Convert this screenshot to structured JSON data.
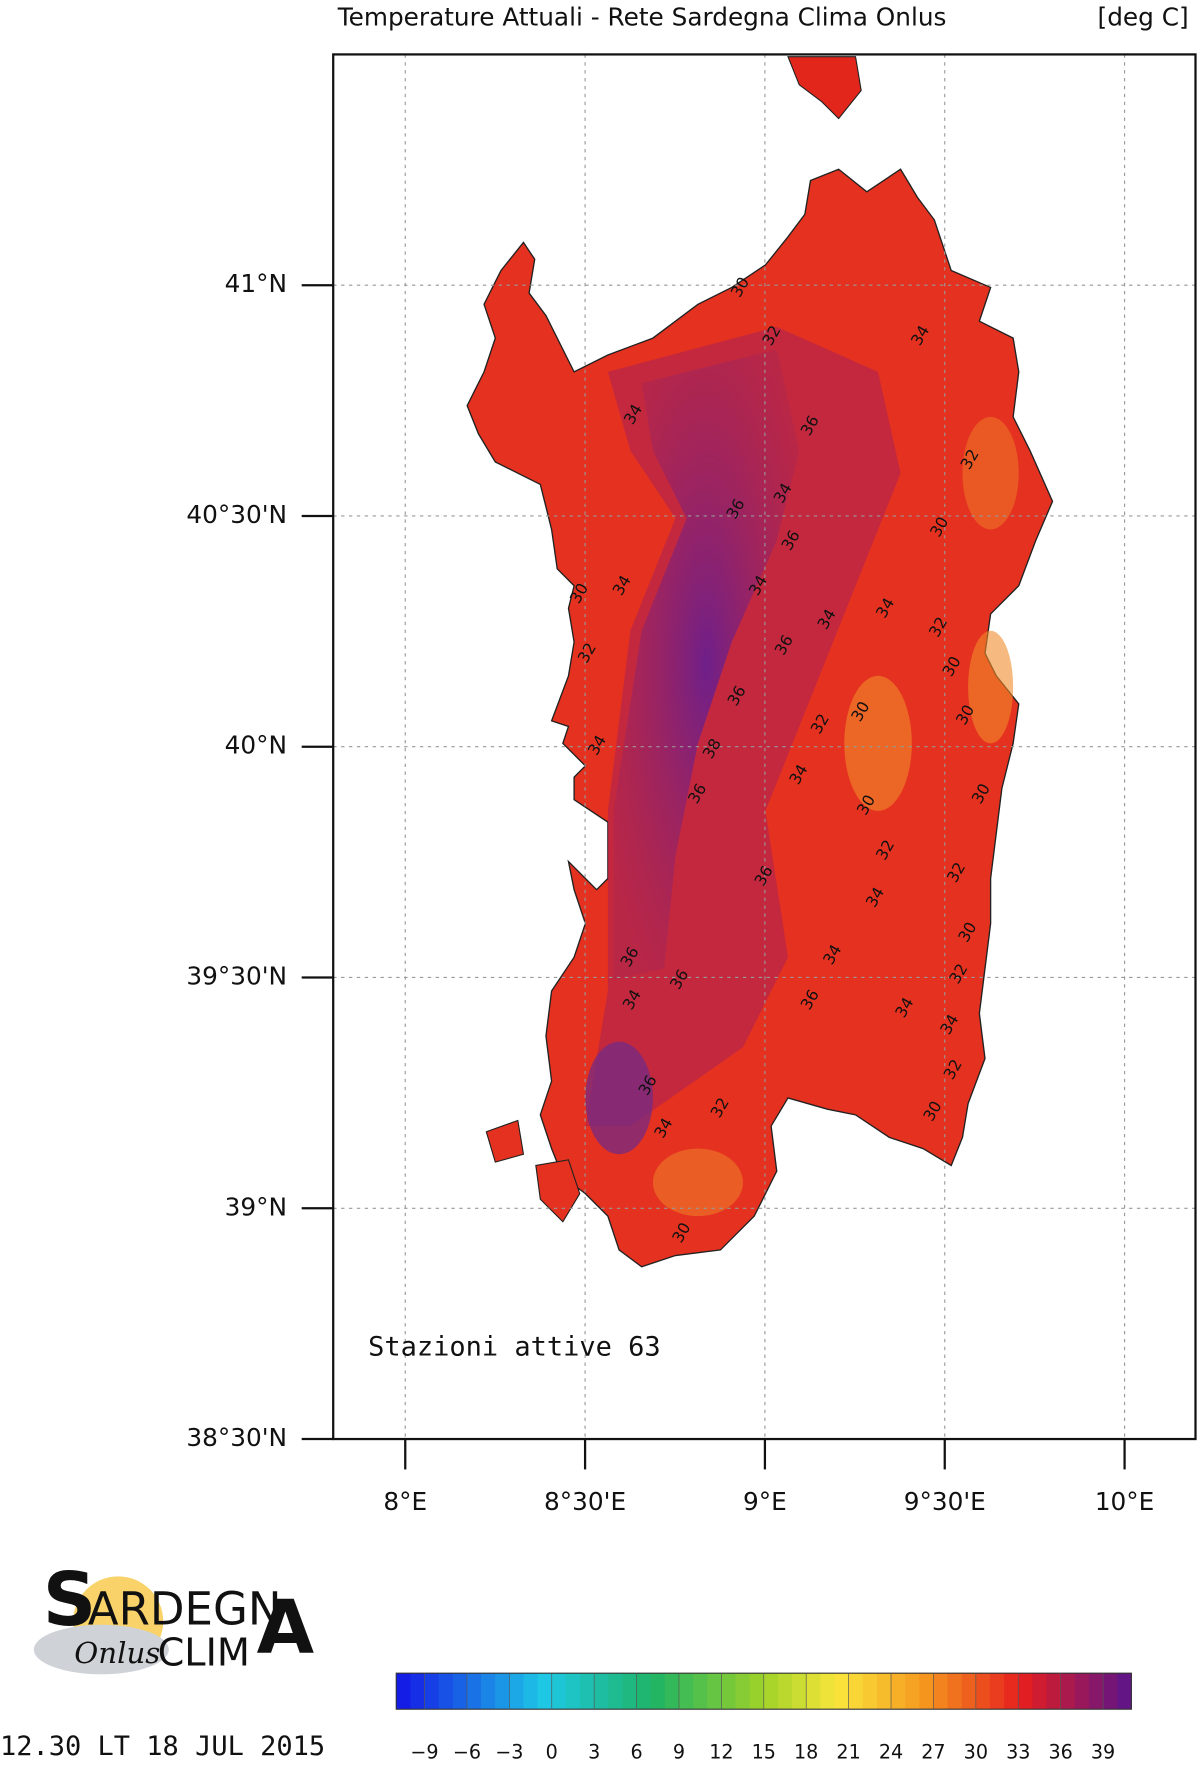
{
  "header": {
    "title": "Temperature Attuali - Rete Sardegna Clima Onlus",
    "unit": "[deg C]"
  },
  "map": {
    "lon_ticks": [
      {
        "value": 8,
        "label": "8°E"
      },
      {
        "value": 8.5,
        "label": "8°30'E"
      },
      {
        "value": 9,
        "label": "9°E"
      },
      {
        "value": 9.5,
        "label": "9°30'E"
      },
      {
        "value": 10,
        "label": "10°E"
      }
    ],
    "lat_ticks": [
      {
        "value": 41,
        "label": "41°N"
      },
      {
        "value": 40.5,
        "label": "40°30'N"
      },
      {
        "value": 40,
        "label": "40°N"
      },
      {
        "value": 39.5,
        "label": "39°30'N"
      },
      {
        "value": 39,
        "label": "39°N"
      },
      {
        "value": 38.5,
        "label": "38°30'N"
      }
    ],
    "contour_labels": [
      30,
      32,
      34,
      34,
      36,
      32,
      36,
      34,
      30,
      36,
      30,
      34,
      34,
      34,
      34,
      32,
      32,
      36,
      30,
      36,
      30,
      32,
      30,
      34,
      38,
      34,
      36,
      30,
      30,
      32,
      36,
      32,
      34,
      30,
      36,
      34,
      36,
      32,
      34,
      36,
      34,
      34,
      32,
      36,
      32,
      30,
      34,
      30
    ],
    "stations_note": "Stazioni attive 63"
  },
  "colorbar": {
    "range": [
      -11,
      41
    ],
    "ticks": [
      {
        "value": -9,
        "label": "−9"
      },
      {
        "value": -6,
        "label": "−6"
      },
      {
        "value": -3,
        "label": "−3"
      },
      0,
      3,
      6,
      9,
      12,
      15,
      18,
      21,
      24,
      27,
      30,
      33,
      36,
      39
    ]
  },
  "logo": {
    "first": "S",
    "main": "ARDEGN",
    "last": "A",
    "sub": "Onlus",
    "second": "CLIM"
  },
  "footer": {
    "timestamp": "12.30 LT 18 JUL 2015"
  }
}
